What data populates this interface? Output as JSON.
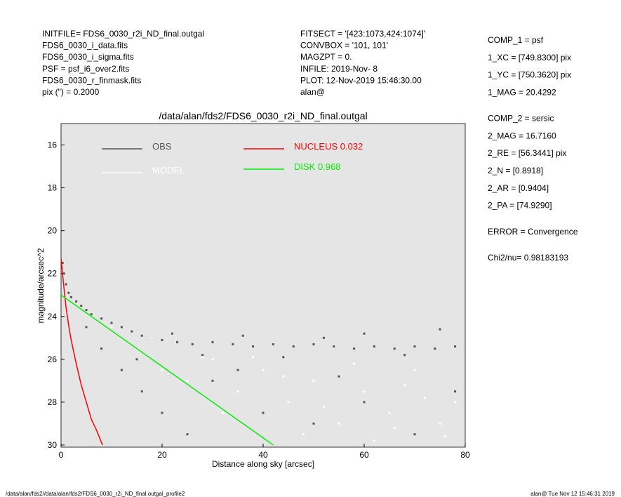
{
  "header": {
    "left": [
      "INITFILE= FDS6_0030_r2i_ND_final.outgal",
      "FDS6_0030_i_data.fits",
      "FDS6_0030_i_sigma.fits",
      "PSF     = psf_i6_over2.fits",
      "FDS6_0030_r_finmask.fits",
      "pix (\") =  0.2000"
    ],
    "center": [
      "FITSECT = '[423:1073,424:1074]'",
      "CONVBOX = '101, 101'",
      "MAGZPT  =               0.",
      "INFILE: 2019-Nov- 8",
      "PLOT: 12-Nov-2019 15:46:30.00",
      "alan@"
    ]
  },
  "components": [
    [
      "COMP_1  = psf",
      "1_XC    = [749.8300] pix",
      "1_YC    = [750.3620] pix",
      "1_MAG   = 20.4292"
    ],
    [
      "COMP_2  = sersic",
      "2_MAG   = 16.7160",
      "2_RE    = [56.3441] pix",
      "2_N     = [0.8918]",
      "2_AR    = [0.9404]",
      "2_PA    = [74.9290]"
    ],
    [
      "ERROR   = Convergence"
    ],
    [
      "Chi2/nu=       0.98183193"
    ]
  ],
  "footer": {
    "left": "/data/alan/fds2//data/alan/fds2/FDS6_0030_r2i_ND_final.outgal_profile2",
    "right": "alan@  Tue Nov 12 15:46:31 2019"
  },
  "chart_data": {
    "type": "scatter",
    "title": "/data/alan/fds2/FDS6_0030_r2i_ND_final.outgal",
    "x_label": "Distance along sky [arcsec]",
    "y_label": "magnitude/arcsec^2",
    "xlim": [
      0,
      80
    ],
    "xticks": [
      0,
      20,
      40,
      60,
      80
    ],
    "ylim": [
      30.1,
      15
    ],
    "yticks": [
      16,
      18,
      20,
      22,
      24,
      26,
      28,
      30
    ],
    "background": "#e5e5e5",
    "series": [
      {
        "name": "OBS",
        "color": "#555555",
        "type": "scatter",
        "x": [
          0.3,
          0.6,
          1,
          1.5,
          2,
          3,
          4,
          5,
          6,
          8,
          10,
          12,
          14,
          16,
          18,
          20,
          23,
          26,
          30,
          34,
          38,
          42,
          46,
          50,
          54,
          58,
          62,
          66,
          70,
          74,
          78,
          22,
          36,
          52,
          68,
          44,
          28,
          60,
          75,
          8,
          12,
          16,
          20,
          25,
          30,
          40,
          50,
          60,
          70,
          78,
          5,
          15,
          35,
          55
        ],
        "values": [
          21.5,
          22.0,
          22.5,
          22.9,
          23.1,
          23.3,
          23.5,
          23.7,
          23.9,
          24.1,
          24.3,
          24.5,
          24.7,
          24.9,
          25.0,
          25.1,
          25.2,
          25.3,
          25.2,
          25.3,
          25.4,
          25.3,
          25.4,
          25.3,
          25.4,
          25.5,
          25.4,
          25.5,
          25.4,
          25.5,
          25.4,
          24.8,
          24.9,
          25.0,
          25.8,
          25.9,
          25.8,
          24.8,
          24.6,
          25.5,
          26.5,
          27.5,
          28.5,
          29.5,
          27.0,
          28.5,
          29.0,
          28.0,
          29.5,
          27.5,
          24.5,
          26.0,
          26.5,
          26.8
        ]
      },
      {
        "name": "MODEL",
        "color": "#ffffff",
        "type": "scatter",
        "x": [
          10,
          15,
          20,
          25,
          30,
          35,
          40,
          45,
          50,
          55,
          60,
          65,
          70,
          75,
          78,
          32,
          48,
          62,
          72,
          38,
          58,
          68,
          18,
          28,
          44,
          52,
          76,
          66
        ],
        "values": [
          24.5,
          25.5,
          26.5,
          27.0,
          26.0,
          27.5,
          26.5,
          28.0,
          27.0,
          29.0,
          27.5,
          28.5,
          26.5,
          29.0,
          28.0,
          28.5,
          29.5,
          29.8,
          27.8,
          25.9,
          26.2,
          27.2,
          25.0,
          25.9,
          26.8,
          28.2,
          29.6,
          29.2
        ]
      },
      {
        "name": "NUCLEUS  0.032",
        "color": "#ff0000",
        "type": "line",
        "x": [
          0,
          0.5,
          1,
          1.5,
          2,
          3,
          4,
          5,
          6,
          7,
          8.2
        ],
        "values": [
          21.3,
          22.5,
          23.6,
          24.4,
          25.1,
          26.2,
          27.2,
          28.0,
          28.8,
          29.3,
          30
        ]
      },
      {
        "name": "DISK  0.968",
        "color": "#00ee00",
        "type": "line",
        "x": [
          0,
          42
        ],
        "values": [
          23,
          30
        ]
      }
    ]
  }
}
